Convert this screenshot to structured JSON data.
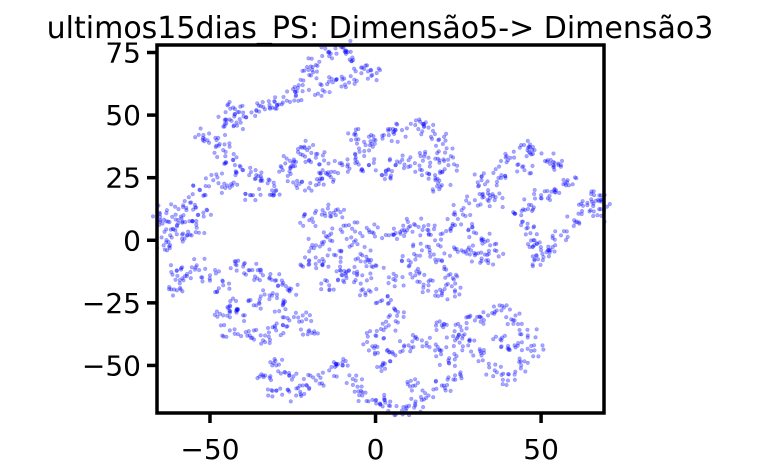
{
  "chart_data": {
    "type": "scatter",
    "title": "ultimos15dias_PS: Dimensão5-> Dimensão3",
    "xlabel": "",
    "ylabel": "",
    "xlim": [
      -66,
      69
    ],
    "ylim": [
      -69,
      78
    ],
    "xticks": [
      {
        "value": -50,
        "label": "−50"
      },
      {
        "value": 0,
        "label": "0"
      },
      {
        "value": 50,
        "label": "50"
      }
    ],
    "yticks": [
      {
        "value": 75,
        "label": "75"
      },
      {
        "value": 50,
        "label": "50"
      },
      {
        "value": 25,
        "label": "25"
      },
      {
        "value": 0,
        "label": "0"
      },
      {
        "value": -25,
        "label": "−25"
      },
      {
        "value": -50,
        "label": "−50"
      }
    ],
    "grid": false,
    "legend": "none",
    "marker_color": "#0000ff",
    "marker_opacity": 0.35,
    "series": [
      {
        "values": [
          [
            -14,
            75
          ],
          [
            -10,
            77
          ],
          [
            -7,
            73
          ],
          [
            -4,
            69
          ],
          [
            -1,
            66
          ],
          [
            -18,
            70
          ],
          [
            -20,
            66
          ],
          [
            -22,
            62
          ],
          [
            -24,
            58
          ],
          [
            -28,
            55
          ],
          [
            -32,
            53
          ],
          [
            -36,
            52
          ],
          [
            -40,
            51
          ],
          [
            -43,
            53
          ],
          [
            -45,
            48
          ],
          [
            -42,
            47
          ],
          [
            -8,
            63
          ],
          [
            -12,
            64
          ],
          [
            -16,
            60
          ],
          [
            -52,
            42
          ],
          [
            -48,
            40
          ],
          [
            -46,
            36
          ],
          [
            -43,
            32
          ],
          [
            -40,
            28
          ],
          [
            -36,
            26
          ],
          [
            -32,
            24
          ],
          [
            -28,
            28
          ],
          [
            -25,
            31
          ],
          [
            -22,
            34
          ],
          [
            -20,
            37
          ],
          [
            -18,
            33
          ],
          [
            -16,
            28
          ],
          [
            -24,
            22
          ],
          [
            -30,
            20
          ],
          [
            -37,
            18
          ],
          [
            -44,
            21
          ],
          [
            -49,
            24
          ],
          [
            -53,
            20
          ],
          [
            -56,
            15
          ],
          [
            -58,
            10
          ],
          [
            -60,
            6
          ],
          [
            -62,
            2
          ],
          [
            -64,
            -2
          ],
          [
            -65,
            8
          ],
          [
            -63,
            12
          ],
          [
            -57,
            2
          ],
          [
            -54,
            5
          ],
          [
            -52,
            11
          ],
          [
            -6,
            42
          ],
          [
            -3,
            38
          ],
          [
            0,
            40
          ],
          [
            4,
            42
          ],
          [
            8,
            44
          ],
          [
            12,
            46
          ],
          [
            16,
            45
          ],
          [
            19,
            40
          ],
          [
            21,
            35
          ],
          [
            22,
            30
          ],
          [
            18,
            26
          ],
          [
            14,
            28
          ],
          [
            10,
            32
          ],
          [
            6,
            30
          ],
          [
            2,
            26
          ],
          [
            -2,
            30
          ],
          [
            -6,
            33
          ],
          [
            -10,
            30
          ],
          [
            -14,
            26
          ],
          [
            -18,
            22
          ],
          [
            16,
            33
          ],
          [
            20,
            22
          ],
          [
            26,
            12
          ],
          [
            30,
            16
          ],
          [
            34,
            20
          ],
          [
            38,
            26
          ],
          [
            40,
            32
          ],
          [
            44,
            38
          ],
          [
            48,
            36
          ],
          [
            52,
            32
          ],
          [
            56,
            30
          ],
          [
            58,
            24
          ],
          [
            54,
            20
          ],
          [
            50,
            18
          ],
          [
            47,
            14
          ],
          [
            44,
            10
          ],
          [
            46,
            5
          ],
          [
            48,
            0
          ],
          [
            50,
            -4
          ],
          [
            48,
            -8
          ],
          [
            52,
            -4
          ],
          [
            56,
            2
          ],
          [
            60,
            8
          ],
          [
            64,
            14
          ],
          [
            66,
            18
          ],
          [
            68,
            16
          ],
          [
            67,
            10
          ],
          [
            45,
            28
          ],
          [
            36,
            16
          ],
          [
            32,
            24
          ],
          [
            -20,
            8
          ],
          [
            -16,
            12
          ],
          [
            -12,
            10
          ],
          [
            -8,
            6
          ],
          [
            -14,
            2
          ],
          [
            -18,
            -2
          ],
          [
            -20,
            -8
          ],
          [
            -16,
            -10
          ],
          [
            -12,
            -6
          ],
          [
            -8,
            -12
          ],
          [
            -4,
            -14
          ],
          [
            0,
            -10
          ],
          [
            -4,
            -6
          ],
          [
            -6,
            0
          ],
          [
            -2,
            4
          ],
          [
            -10,
            -14
          ],
          [
            -14,
            -18
          ],
          [
            4,
            2
          ],
          [
            8,
            4
          ],
          [
            12,
            6
          ],
          [
            16,
            4
          ],
          [
            18,
            0
          ],
          [
            14,
            -4
          ],
          [
            10,
            -8
          ],
          [
            12,
            -14
          ],
          [
            16,
            -18
          ],
          [
            20,
            -22
          ],
          [
            24,
            -20
          ],
          [
            22,
            -14
          ],
          [
            20,
            -8
          ],
          [
            26,
            -4
          ],
          [
            30,
            -6
          ],
          [
            34,
            -8
          ],
          [
            36,
            -4
          ],
          [
            32,
            0
          ],
          [
            28,
            4
          ],
          [
            24,
            6
          ],
          [
            6,
            -16
          ],
          [
            -42,
            -10
          ],
          [
            -38,
            -12
          ],
          [
            -34,
            -14
          ],
          [
            -30,
            -16
          ],
          [
            -26,
            -20
          ],
          [
            -28,
            -26
          ],
          [
            -32,
            -22
          ],
          [
            -36,
            -26
          ],
          [
            -40,
            -30
          ],
          [
            -44,
            -26
          ],
          [
            -46,
            -18
          ],
          [
            -50,
            -14
          ],
          [
            -54,
            -10
          ],
          [
            -58,
            -16
          ],
          [
            -60,
            -20
          ],
          [
            -44,
            -36
          ],
          [
            -38,
            -38
          ],
          [
            -34,
            -40
          ],
          [
            -30,
            -36
          ],
          [
            -26,
            -32
          ],
          [
            -22,
            -30
          ],
          [
            -20,
            -36
          ],
          [
            -46,
            -30
          ],
          [
            -60,
            -12
          ],
          [
            -30,
            -50
          ],
          [
            -26,
            -54
          ],
          [
            -22,
            -58
          ],
          [
            -18,
            -56
          ],
          [
            -14,
            -52
          ],
          [
            -10,
            -50
          ],
          [
            -6,
            -56
          ],
          [
            -4,
            -62
          ],
          [
            0,
            -64
          ],
          [
            4,
            -66
          ],
          [
            8,
            -68
          ],
          [
            12,
            -66
          ],
          [
            -34,
            -54
          ],
          [
            -30,
            -60
          ],
          [
            -24,
            -62
          ],
          [
            -2,
            -20
          ],
          [
            2,
            -24
          ],
          [
            6,
            -28
          ],
          [
            4,
            -34
          ],
          [
            0,
            -38
          ],
          [
            -2,
            -44
          ],
          [
            2,
            -50
          ],
          [
            6,
            -46
          ],
          [
            10,
            -42
          ],
          [
            14,
            -40
          ],
          [
            18,
            -44
          ],
          [
            22,
            -48
          ],
          [
            24,
            -54
          ],
          [
            20,
            -58
          ],
          [
            16,
            -62
          ],
          [
            12,
            -58
          ],
          [
            26,
            -36
          ],
          [
            30,
            -32
          ],
          [
            34,
            -30
          ],
          [
            38,
            -28
          ],
          [
            42,
            -32
          ],
          [
            46,
            -38
          ],
          [
            48,
            -44
          ],
          [
            44,
            -50
          ],
          [
            40,
            -56
          ],
          [
            36,
            -52
          ],
          [
            32,
            -46
          ],
          [
            28,
            -42
          ],
          [
            24,
            -40
          ],
          [
            20,
            -34
          ],
          [
            42,
            -42
          ],
          [
            38,
            -40
          ]
        ]
      }
    ]
  }
}
